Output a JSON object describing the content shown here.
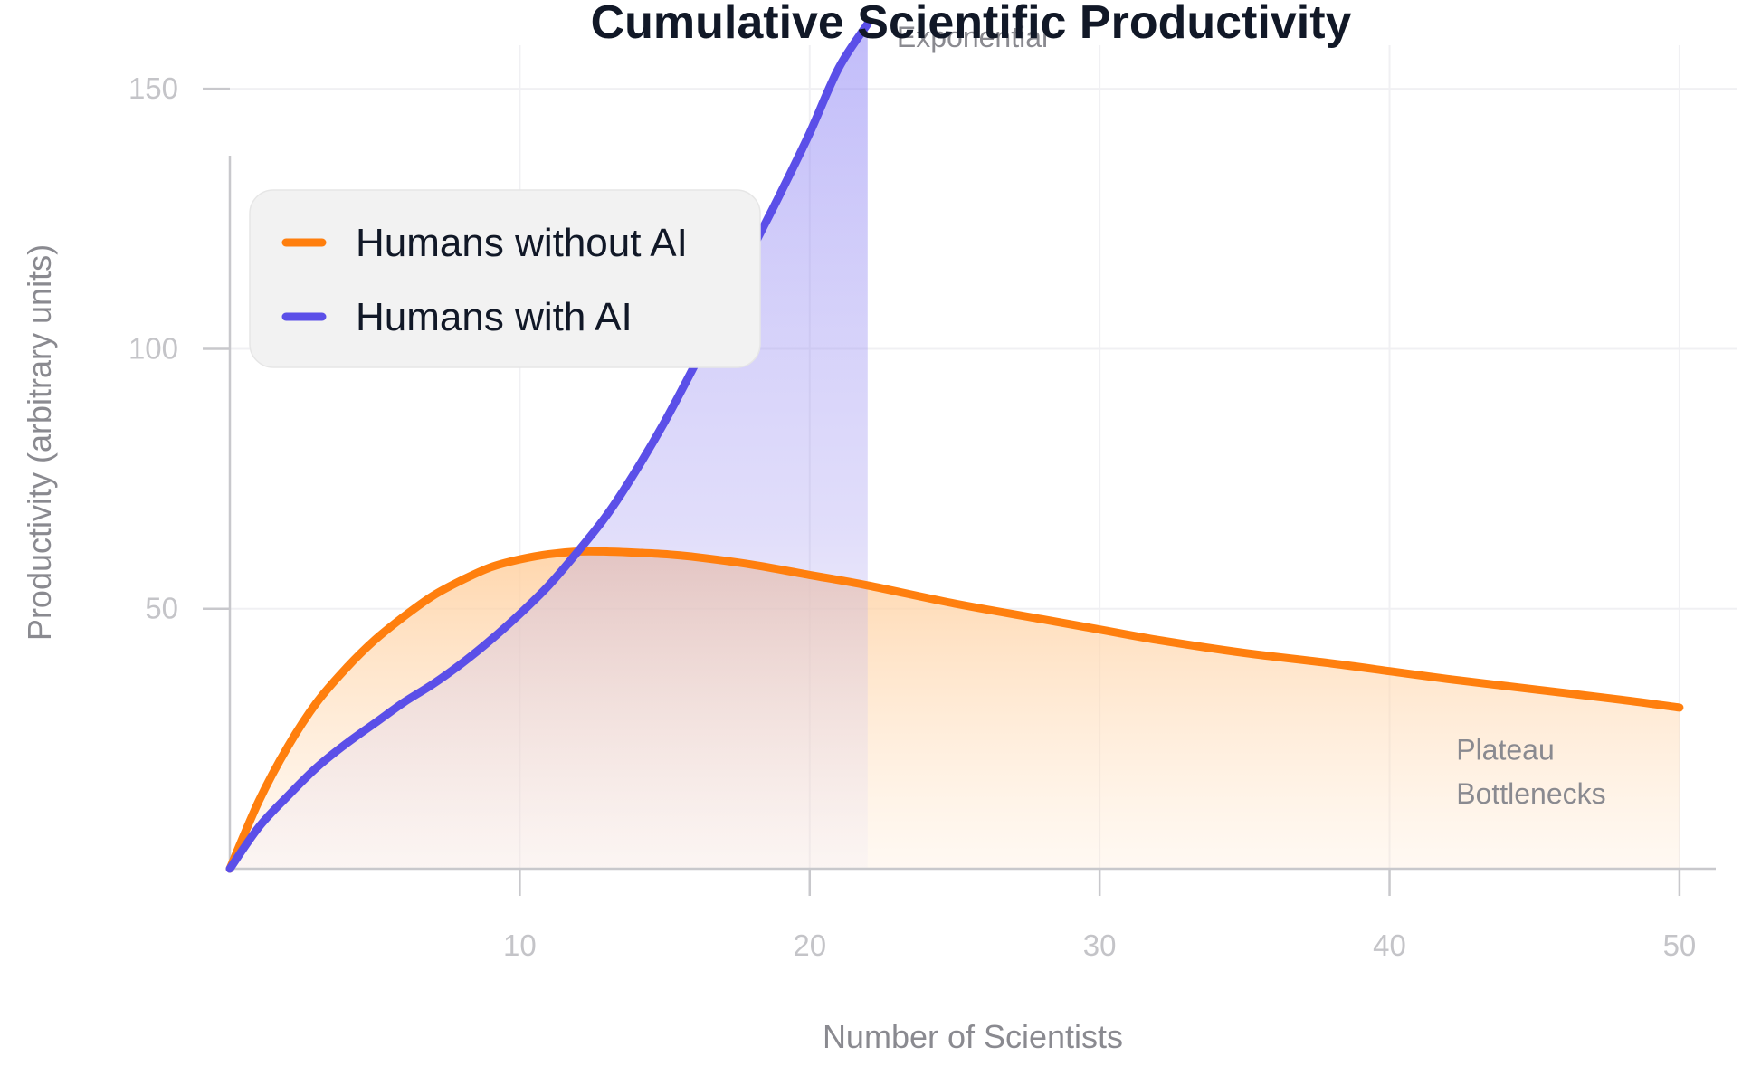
{
  "chart_data": {
    "type": "area",
    "title": "Cumulative Scientific Productivity",
    "xlabel": "Number of Scientists",
    "ylabel": "Productivity (arbitrary units)",
    "xlim": [
      0,
      52
    ],
    "ylim": [
      0,
      165
    ],
    "xticks": [
      10,
      20,
      30,
      40,
      50
    ],
    "yticks": [
      50,
      100,
      150
    ],
    "grid": true,
    "legend_position": "top-left",
    "series": [
      {
        "name": "Humans without AI",
        "color": "#ff7f0e",
        "x": [
          0,
          1,
          2,
          3,
          4,
          5,
          6,
          7,
          8,
          9,
          10,
          11,
          12,
          13,
          14,
          15,
          16,
          18,
          20,
          22,
          25,
          28,
          30,
          32,
          35,
          38,
          40,
          42,
          45,
          48,
          50
        ],
        "y": [
          0,
          13,
          23.5,
          32,
          38.5,
          44,
          48.5,
          52.5,
          55.5,
          58,
          59.5,
          60.5,
          61,
          61,
          60.8,
          60.5,
          60,
          58.5,
          56.5,
          54.5,
          51,
          48,
          46,
          44,
          41.5,
          39.5,
          38,
          36.5,
          34.5,
          32.5,
          31
        ]
      },
      {
        "name": "Humans with AI",
        "color": "#5b4fe8",
        "x": [
          0,
          1,
          2,
          3,
          4,
          5,
          6,
          7,
          8,
          9,
          10,
          11,
          12,
          13,
          14,
          15,
          16,
          17,
          18,
          19,
          20,
          21,
          22
        ],
        "y": [
          0,
          8,
          14,
          19.5,
          24,
          28,
          32,
          35.5,
          39.5,
          44,
          49,
          54.5,
          61,
          68,
          76.5,
          86,
          96.5,
          107.5,
          119,
          130,
          141.5,
          154,
          162.5
        ]
      }
    ],
    "annotations": [
      {
        "text": "Exponential",
        "x": 23,
        "y": 158
      },
      {
        "text": "Plateau",
        "x": 42.3,
        "y": 21
      },
      {
        "text": "Bottlenecks",
        "x": 42.3,
        "y": 12.5
      }
    ]
  }
}
